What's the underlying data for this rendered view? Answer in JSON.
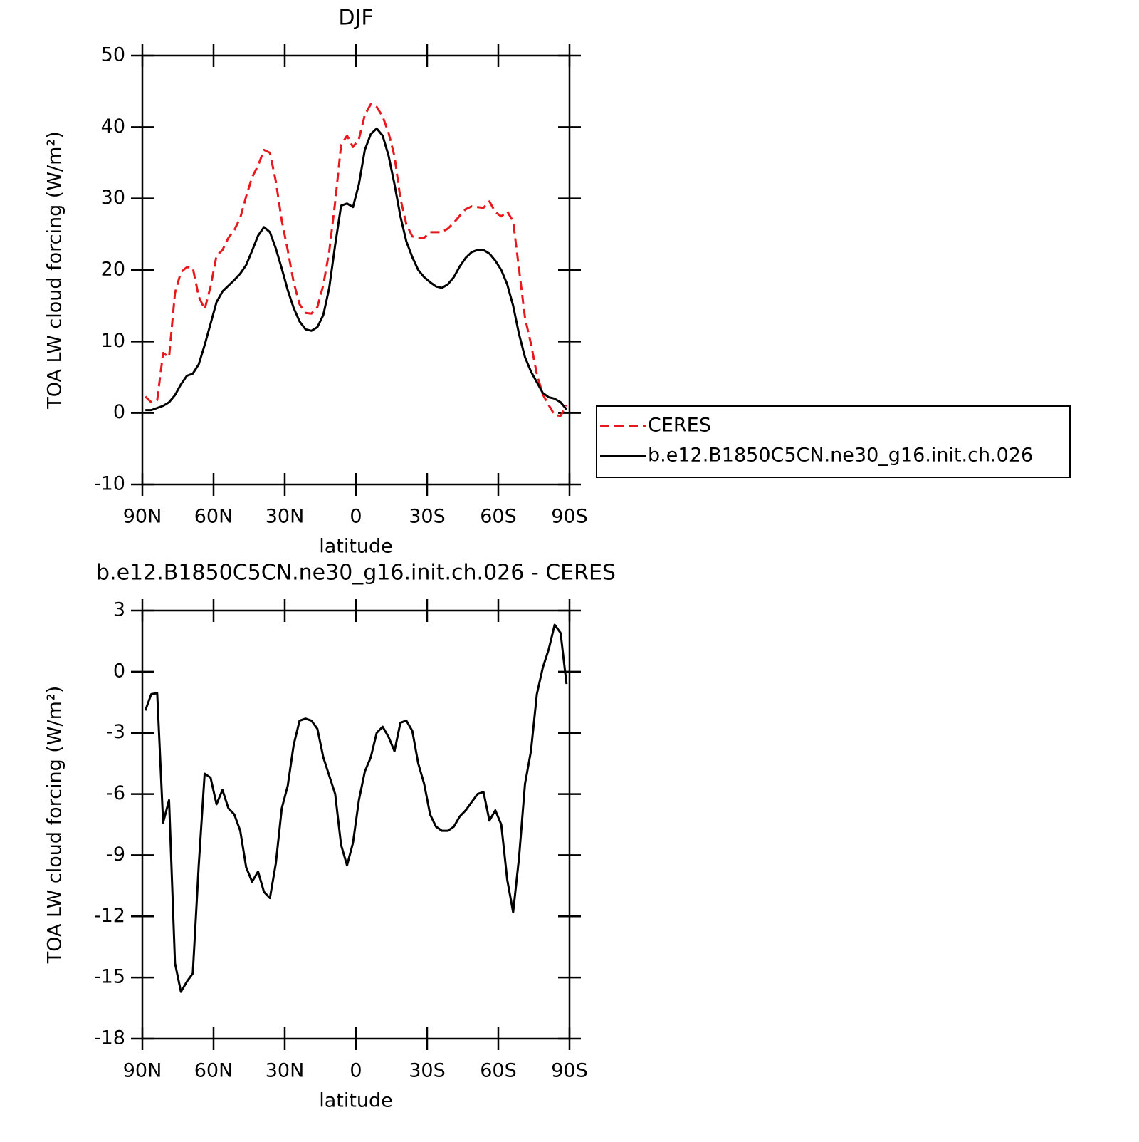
{
  "chart_data": [
    {
      "type": "line",
      "title": "DJF",
      "x_label": "latitude",
      "y_label": "TOA LW cloud forcing (W/m²)",
      "x": [
        88.75,
        86.25,
        83.75,
        81.25,
        78.75,
        76.25,
        73.75,
        71.25,
        68.75,
        66.25,
        63.75,
        61.25,
        58.75,
        56.25,
        53.75,
        51.25,
        48.75,
        46.25,
        43.75,
        41.25,
        38.75,
        36.25,
        33.75,
        31.25,
        28.75,
        26.25,
        23.75,
        21.25,
        18.75,
        16.25,
        13.75,
        11.25,
        8.75,
        6.25,
        3.75,
        1.25,
        -1.25,
        -3.75,
        -6.25,
        -8.75,
        -11.25,
        -13.75,
        -16.25,
        -18.75,
        -21.25,
        -23.75,
        -26.25,
        -28.75,
        -31.25,
        -33.75,
        -36.25,
        -38.75,
        -41.25,
        -43.75,
        -46.25,
        -48.75,
        -51.25,
        -53.75,
        -56.25,
        -58.75,
        -61.25,
        -63.75,
        -66.25,
        -68.75,
        -71.25,
        -73.75,
        -76.25,
        -78.75,
        -81.25,
        -83.75,
        -86.25,
        -88.75
      ],
      "series": [
        {
          "name": "CERES",
          "color": "#e8191c",
          "dash": true,
          "values": [
            2.3,
            1.5,
            1.8,
            8.4,
            7.8,
            16.8,
            19.7,
            20.4,
            20.3,
            16.3,
            14.5,
            17.7,
            22.0,
            22.8,
            24.5,
            25.6,
            27.3,
            30.3,
            33.0,
            34.6,
            36.8,
            36.4,
            32.4,
            26.9,
            22.8,
            18.3,
            15.2,
            14.0,
            13.9,
            14.8,
            17.9,
            22.6,
            29.5,
            37.5,
            38.8,
            37.2,
            38.3,
            41.7,
            43.2,
            42.8,
            41.5,
            39.2,
            35.9,
            30.0,
            26.4,
            24.7,
            24.5,
            24.5,
            25.3,
            25.3,
            25.3,
            25.8,
            26.6,
            27.6,
            28.5,
            28.9,
            28.8,
            28.7,
            29.6,
            28.1,
            27.5,
            28.2,
            26.8,
            20.1,
            13.3,
            9.7,
            5.4,
            2.6,
            1.1,
            -0.3,
            -0.4,
            1.1
          ]
        },
        {
          "name": "b.e12.B1850C5CN.ne30_g16.init.ch.026",
          "color": "#000000",
          "dash": false,
          "values": [
            0.4,
            0.4,
            0.7,
            1.0,
            1.5,
            2.5,
            4.0,
            5.2,
            5.5,
            6.8,
            9.5,
            12.5,
            15.5,
            17.0,
            17.8,
            18.6,
            19.5,
            20.7,
            22.7,
            24.8,
            26.0,
            25.3,
            23.0,
            20.2,
            17.2,
            14.7,
            12.8,
            11.7,
            11.5,
            12.0,
            13.7,
            17.5,
            23.5,
            29.0,
            29.3,
            28.8,
            32.0,
            36.8,
            39.0,
            39.8,
            38.8,
            36.0,
            32.0,
            27.5,
            24.0,
            21.8,
            20.0,
            19.0,
            18.3,
            17.7,
            17.5,
            18.0,
            19.0,
            20.5,
            21.7,
            22.5,
            22.8,
            22.8,
            22.3,
            21.3,
            20.0,
            18.0,
            15.0,
            11.0,
            7.8,
            5.8,
            4.3,
            2.8,
            2.2,
            2.0,
            1.5,
            0.5
          ]
        }
      ],
      "xlim": [
        90,
        -90
      ],
      "xticks": [
        {
          "value": 90,
          "label": "90N"
        },
        {
          "value": 60,
          "label": "60N"
        },
        {
          "value": 30,
          "label": "30N"
        },
        0,
        {
          "value": -30,
          "label": "30S"
        },
        {
          "value": -60,
          "label": "60S"
        },
        {
          "value": -90,
          "label": "90S"
        }
      ],
      "ylim": [
        -10,
        50
      ],
      "yticks": [
        -10,
        0,
        10,
        20,
        30,
        40,
        50
      ],
      "legend": "outside right"
    },
    {
      "type": "line",
      "title": "b.e12.B1850C5CN.ne30_g16.init.ch.026 - CERES",
      "x_label": "latitude",
      "y_label": "TOA LW cloud forcing (W/m²)",
      "x": [
        88.75,
        86.25,
        83.75,
        81.25,
        78.75,
        76.25,
        73.75,
        71.25,
        68.75,
        66.25,
        63.75,
        61.25,
        58.75,
        56.25,
        53.75,
        51.25,
        48.75,
        46.25,
        43.75,
        41.25,
        38.75,
        36.25,
        33.75,
        31.25,
        28.75,
        26.25,
        23.75,
        21.25,
        18.75,
        16.25,
        13.75,
        11.25,
        8.75,
        6.25,
        3.75,
        1.25,
        -1.25,
        -3.75,
        -6.25,
        -8.75,
        -11.25,
        -13.75,
        -16.25,
        -18.75,
        -21.25,
        -23.75,
        -26.25,
        -28.75,
        -31.25,
        -33.75,
        -36.25,
        -38.75,
        -41.25,
        -43.75,
        -46.25,
        -48.75,
        -51.25,
        -53.75,
        -56.25,
        -58.75,
        -61.25,
        -63.75,
        -66.25,
        -68.75,
        -71.25,
        -73.75,
        -76.25,
        -78.75,
        -81.25,
        -83.75,
        -86.25,
        -88.75
      ],
      "series": [
        {
          "color": "#000000",
          "dash": false,
          "values": [
            -1.9,
            -1.1,
            -1.05,
            -7.4,
            -6.3,
            -14.3,
            -15.7,
            -15.2,
            -14.8,
            -9.5,
            -5.0,
            -5.2,
            -6.5,
            -5.8,
            -6.7,
            -7.0,
            -7.8,
            -9.6,
            -10.3,
            -9.8,
            -10.8,
            -11.1,
            -9.4,
            -6.7,
            -5.6,
            -3.6,
            -2.4,
            -2.3,
            -2.4,
            -2.8,
            -4.2,
            -5.1,
            -6.0,
            -8.5,
            -9.5,
            -8.4,
            -6.3,
            -4.9,
            -4.2,
            -3.0,
            -2.7,
            -3.2,
            -3.9,
            -2.5,
            -2.4,
            -2.9,
            -4.5,
            -5.5,
            -7.0,
            -7.6,
            -7.8,
            -7.8,
            -7.6,
            -7.1,
            -6.8,
            -6.4,
            -6.0,
            -5.9,
            -7.3,
            -6.8,
            -7.5,
            -10.2,
            -11.8,
            -9.1,
            -5.5,
            -3.9,
            -1.1,
            0.2,
            1.1,
            2.3,
            1.9,
            -0.6
          ]
        }
      ],
      "xlim": [
        90,
        -90
      ],
      "xticks": [
        {
          "value": 90,
          "label": "90N"
        },
        {
          "value": 60,
          "label": "60N"
        },
        {
          "value": 30,
          "label": "30N"
        },
        0,
        {
          "value": -30,
          "label": "30S"
        },
        {
          "value": -60,
          "label": "60S"
        },
        {
          "value": -90,
          "label": "90S"
        }
      ],
      "ylim": [
        -18,
        3
      ],
      "yticks": [
        -18,
        -15,
        -12,
        -9,
        -6,
        -3,
        0,
        3
      ]
    }
  ]
}
